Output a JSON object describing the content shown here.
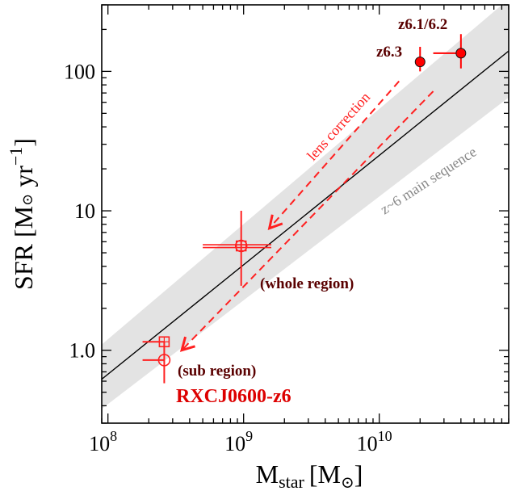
{
  "chart_data": {
    "type": "scatter",
    "title": "",
    "xlabel": {
      "main": "M",
      "sub": "star",
      "unit": "[M",
      "unit_sym": "⊙",
      "unit_close": "]"
    },
    "ylabel": {
      "main": "SFR [M",
      "unit_sym": "⊙",
      "tail": " yr",
      "sup": "−1",
      "close": "]"
    },
    "x_scale": "log",
    "y_scale": "log",
    "xlim": [
      90000000.0,
      90000000000.0
    ],
    "ylim": [
      0.3,
      300
    ],
    "x_ticks": [
      {
        "value": 100000000.0,
        "base": "10",
        "exp": "8"
      },
      {
        "value": 1000000000.0,
        "base": "10",
        "exp": "9"
      },
      {
        "value": 10000000000.0,
        "base": "10",
        "exp": "10"
      }
    ],
    "y_ticks": [
      {
        "value": 1,
        "label": "1.0"
      },
      {
        "value": 10,
        "label": "10"
      },
      {
        "value": 100,
        "label": "100"
      }
    ],
    "main_sequence": {
      "label": "z~6 main sequence",
      "line": [
        [
          90000000.0,
          0.62
        ],
        [
          90000000000.0,
          140
        ]
      ],
      "band_upper": [
        [
          90000000.0,
          1.1
        ],
        [
          90000000000.0,
          330
        ]
      ],
      "band_lower": [
        [
          90000000.0,
          0.38
        ],
        [
          90000000000.0,
          65
        ]
      ],
      "line_color": "#000000",
      "band_color": "#e3e3e3",
      "label_color": "#888888"
    },
    "lens_correction": {
      "label": "lens correction",
      "color": "#ff2020",
      "arrows": [
        {
          "from": [
            14000000000.0,
            85
          ],
          "to": [
            1550000000.0,
            7.5
          ]
        },
        {
          "from": [
            25000000000.0,
            72
          ],
          "to": [
            350000000.0,
            1.0
          ]
        }
      ]
    },
    "series": [
      {
        "name": "z6.3",
        "marker": "filled-circle",
        "color": "#ff0000",
        "points": [
          {
            "x": 20000000000.0,
            "y": 117,
            "xerr": [
              20000000000.0,
              20000000000.0
            ],
            "yerr": [
              100,
              150
            ]
          }
        ]
      },
      {
        "name": "z6.1/6.2",
        "marker": "filled-circle",
        "color": "#ff0000",
        "points": [
          {
            "x": 40000000000.0,
            "y": 135,
            "xerr": [
              25000000000.0,
              40000000000.0
            ],
            "yerr": [
              105,
              185
            ]
          }
        ]
      },
      {
        "name": "whole region",
        "marker": "open-circle+square",
        "color": "#ff2020",
        "points": [
          {
            "x": 960000000.0,
            "y": 5.6,
            "xerr": [
              500000000.0,
              1600000000.0
            ],
            "yerr": [
              2.9,
              10
            ]
          }
        ]
      },
      {
        "name": "sub region",
        "marker": "open-circle+square",
        "color": "#ff2020",
        "points": [
          {
            "x": 260000000.0,
            "y": 1.15,
            "xerr": [
              180000000.0,
              260000000.0
            ],
            "yerr": [
              1.15,
              1.15
            ],
            "marker": "square"
          },
          {
            "x": 260000000.0,
            "y": 0.85,
            "xerr": [
              180000000.0,
              260000000.0
            ],
            "yerr": [
              0.58,
              1.15
            ],
            "marker": "circle"
          }
        ]
      }
    ],
    "annotations": {
      "target_name": "RXCJ0600-z6",
      "target_color": "#dd0000",
      "whole_region": "(whole region)",
      "sub_region": "(sub region)",
      "label_z63": "z6.3",
      "label_z612": "z6.1/6.2",
      "text_color": "#5a0000"
    },
    "grid": false,
    "legend": "none"
  }
}
